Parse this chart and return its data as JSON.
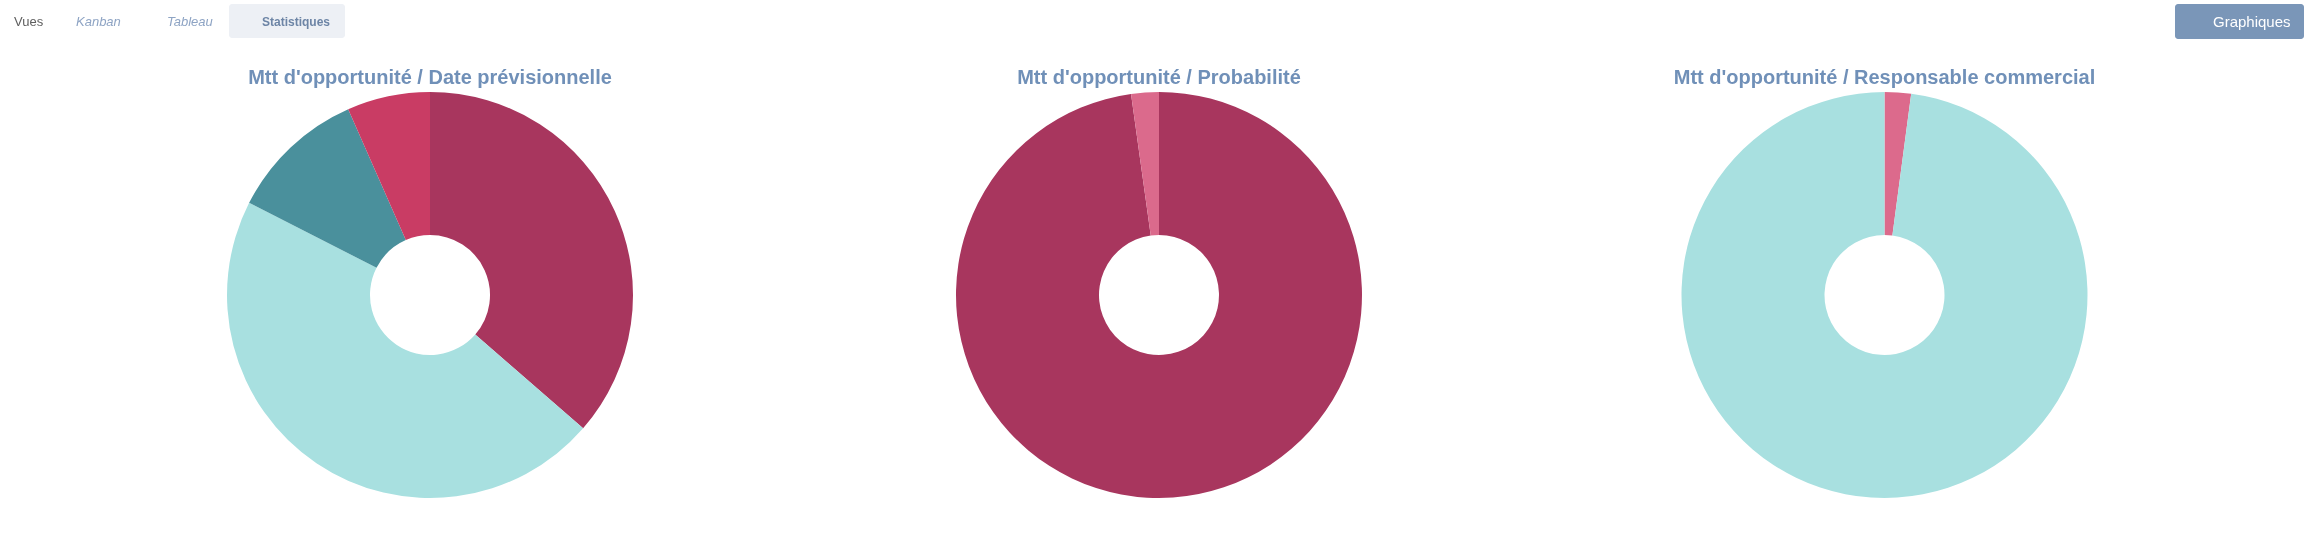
{
  "chart_data": [
    {
      "type": "other",
      "annotations": [
        "Vues",
        "Kanban",
        "Tableau",
        "Statistiques",
        "Graphiques"
      ]
    },
    {
      "type": "donut",
      "title": "Mtt d'opportunité / Date prévisionnelle",
      "categories": [
        null,
        null,
        null,
        null
      ],
      "values": [
        36.4,
        46.1,
        10.9,
        6.6
      ],
      "colors": [
        "#a8365e",
        "#a8e0e0",
        "#4a909c",
        "#c93c64"
      ]
    },
    {
      "type": "donut",
      "title": "Mtt d'opportunité / Probabilité",
      "categories": [
        null,
        null
      ],
      "values": [
        97.8,
        2.2
      ],
      "colors": [
        "#a8365e",
        "#db6a8c"
      ]
    },
    {
      "type": "donut",
      "title": "Mtt d'opportunité / Responsable commercial",
      "categories": [
        null,
        null
      ],
      "values": [
        2.1,
        97.9
      ],
      "colors": [
        "#dc6a8c",
        "#a8e0e0"
      ]
    }
  ]
}
